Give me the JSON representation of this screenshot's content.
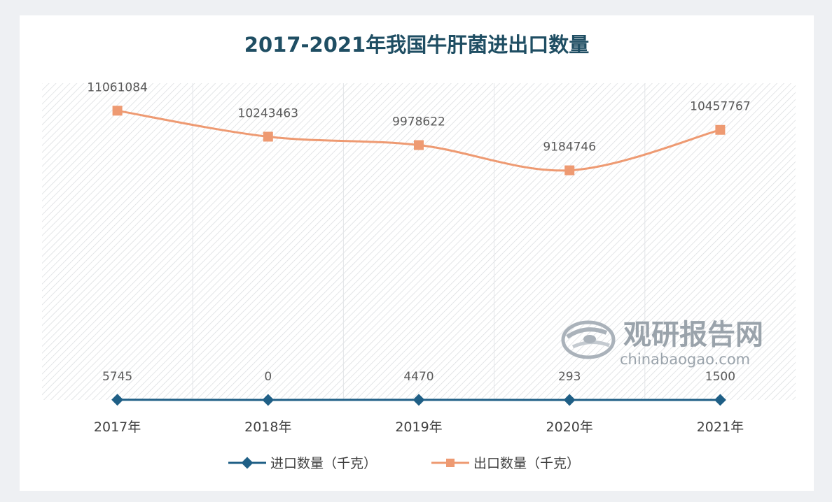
{
  "chart_data": {
    "type": "line",
    "title": "2017-2021年我国牛肝菌进出口数量",
    "categories": [
      "2017年",
      "2018年",
      "2019年",
      "2020年",
      "2021年"
    ],
    "series": [
      {
        "name": "进口数量（千克）",
        "values": [
          5745,
          0,
          4470,
          293,
          1500
        ],
        "labels": [
          "5745",
          "0",
          "4470",
          "293",
          "1500"
        ],
        "color": "#1f5f86",
        "marker": "diamond"
      },
      {
        "name": "出口数量（千克）",
        "values": [
          11061084,
          10243463,
          9978622,
          9184746,
          10457767
        ],
        "labels": [
          "11061084",
          "10243463",
          "9978622",
          "9184746",
          "10457767"
        ],
        "color": "#ee9a72",
        "marker": "square"
      }
    ],
    "ylim": [
      0,
      12500000
    ],
    "grid": false,
    "legend": "bottom",
    "background": "diagonal-hatch"
  },
  "watermark": {
    "name": "观研报告网",
    "url": "chinabaogao.com"
  }
}
